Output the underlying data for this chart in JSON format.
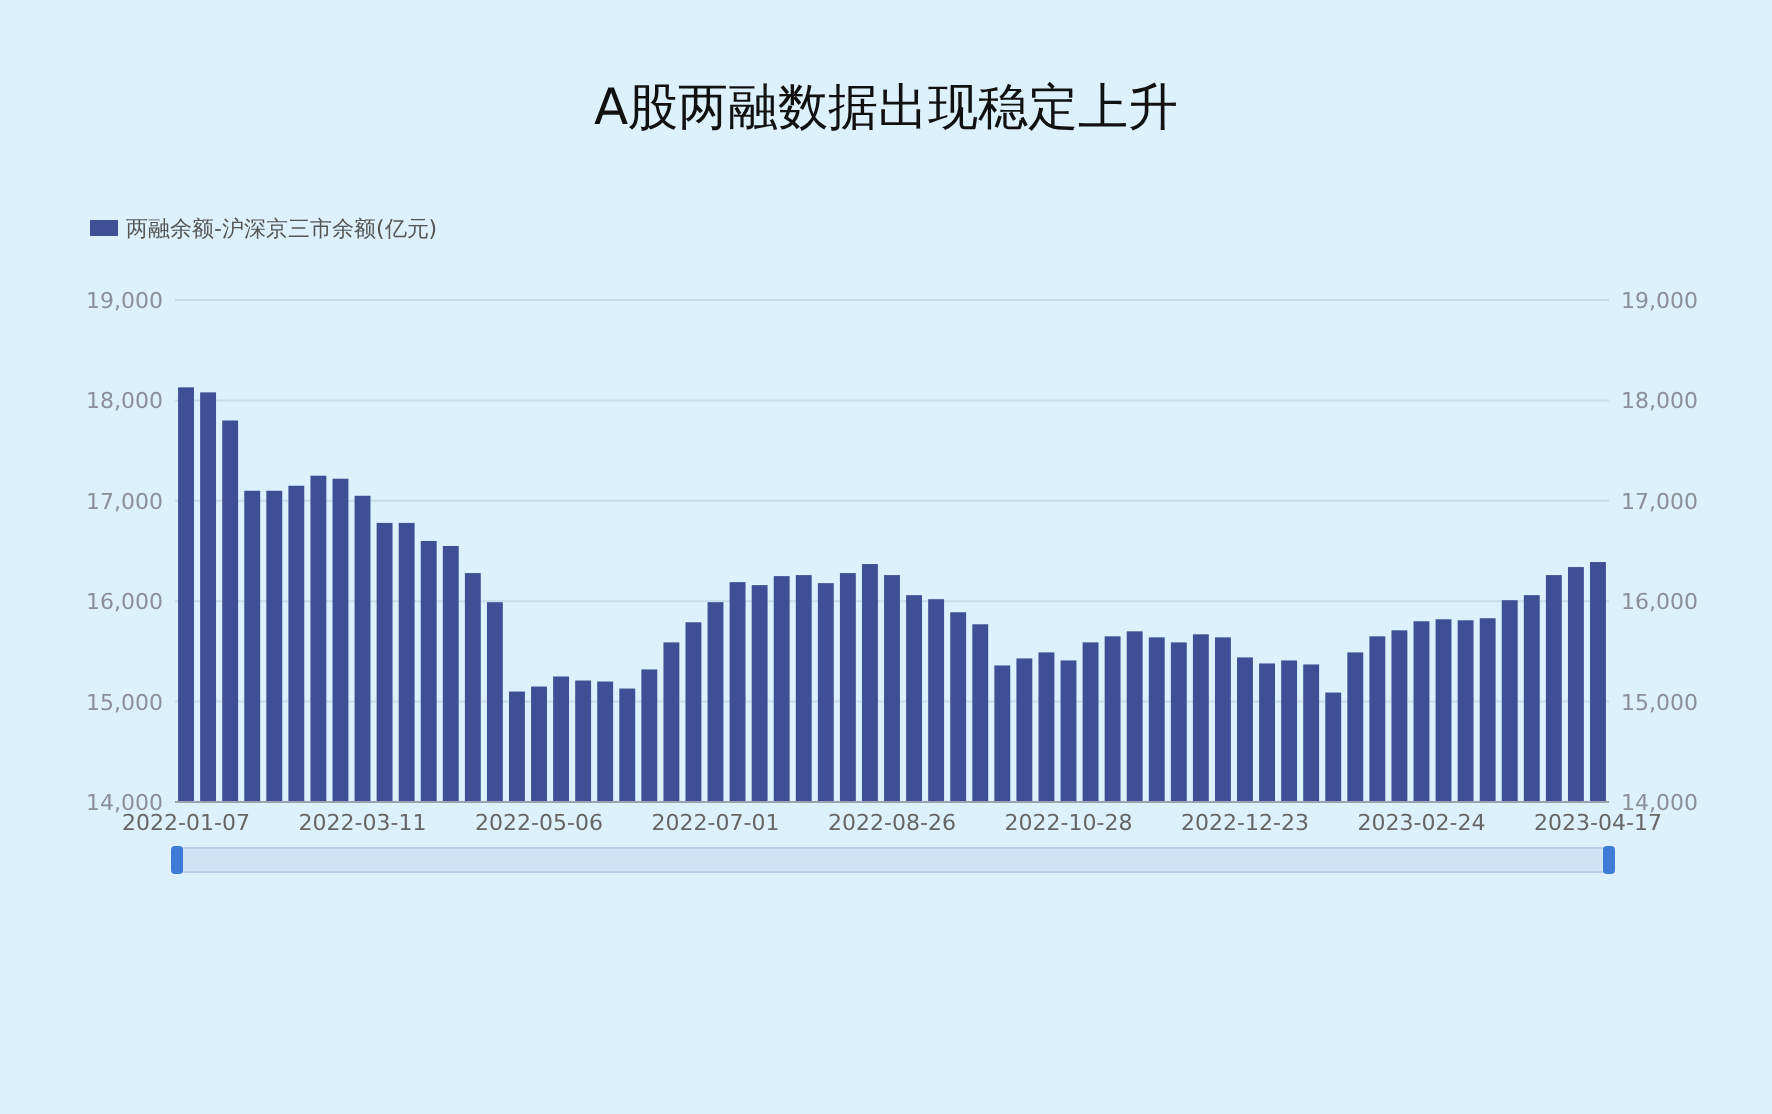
{
  "chart_data": {
    "type": "bar",
    "title": "A股两融数据出现稳定上升",
    "categories": [
      "2022-01-07",
      null,
      null,
      null,
      null,
      null,
      null,
      null,
      "2022-03-11",
      null,
      null,
      null,
      null,
      null,
      null,
      null,
      "2022-05-06",
      null,
      null,
      null,
      null,
      null,
      null,
      null,
      "2022-07-01",
      null,
      null,
      null,
      null,
      null,
      null,
      null,
      "2022-08-26",
      null,
      null,
      null,
      null,
      null,
      null,
      null,
      "2022-10-28",
      null,
      null,
      null,
      null,
      null,
      null,
      null,
      "2022-12-23",
      null,
      null,
      null,
      null,
      null,
      null,
      null,
      "2023-02-24",
      null,
      null,
      null,
      null,
      null,
      null,
      null,
      "2023-04-17"
    ],
    "series": [
      {
        "name": "两融余额-沪深京三市余额(亿元)",
        "color": "#3e4f95",
        "values": [
          18130,
          18080,
          17800,
          17100,
          17100,
          17150,
          17250,
          17220,
          17050,
          16780,
          16780,
          16600,
          16550,
          16280,
          15990,
          15100,
          15150,
          15250,
          15210,
          15200,
          15130,
          15320,
          15590,
          15790,
          15990,
          16190,
          16160,
          16250,
          16260,
          16180,
          16280,
          16370,
          16260,
          16060,
          16020,
          15890,
          15770,
          15360,
          15430,
          15490,
          15410,
          15590,
          15650,
          15700,
          15640,
          15590,
          15670,
          15640,
          15440,
          15380,
          15410,
          15370,
          15090,
          15490,
          15650,
          15710,
          15800,
          15820,
          15810,
          15830,
          16010,
          16060,
          16260,
          16340,
          16390
        ]
      }
    ],
    "ylim": [
      14000,
      19000
    ],
    "yticks": [
      {
        "value": 14000,
        "label": "14,000"
      },
      {
        "value": 15000,
        "label": "15,000"
      },
      {
        "value": 16000,
        "label": "16,000"
      },
      {
        "value": 17000,
        "label": "17,000"
      },
      {
        "value": 18000,
        "label": "18,000"
      },
      {
        "value": 19000,
        "label": "19,000"
      }
    ],
    "y2lim": [
      14000,
      19000
    ],
    "y2ticks": [
      {
        "value": 14000,
        "label": "14,000"
      },
      {
        "value": 15000,
        "label": "15,000"
      },
      {
        "value": 16000,
        "label": "16,000"
      },
      {
        "value": 17000,
        "label": "17,000"
      },
      {
        "value": 18000,
        "label": "18,000"
      },
      {
        "value": 19000,
        "label": "19,000"
      }
    ],
    "grid": "y",
    "legend": "top left"
  }
}
